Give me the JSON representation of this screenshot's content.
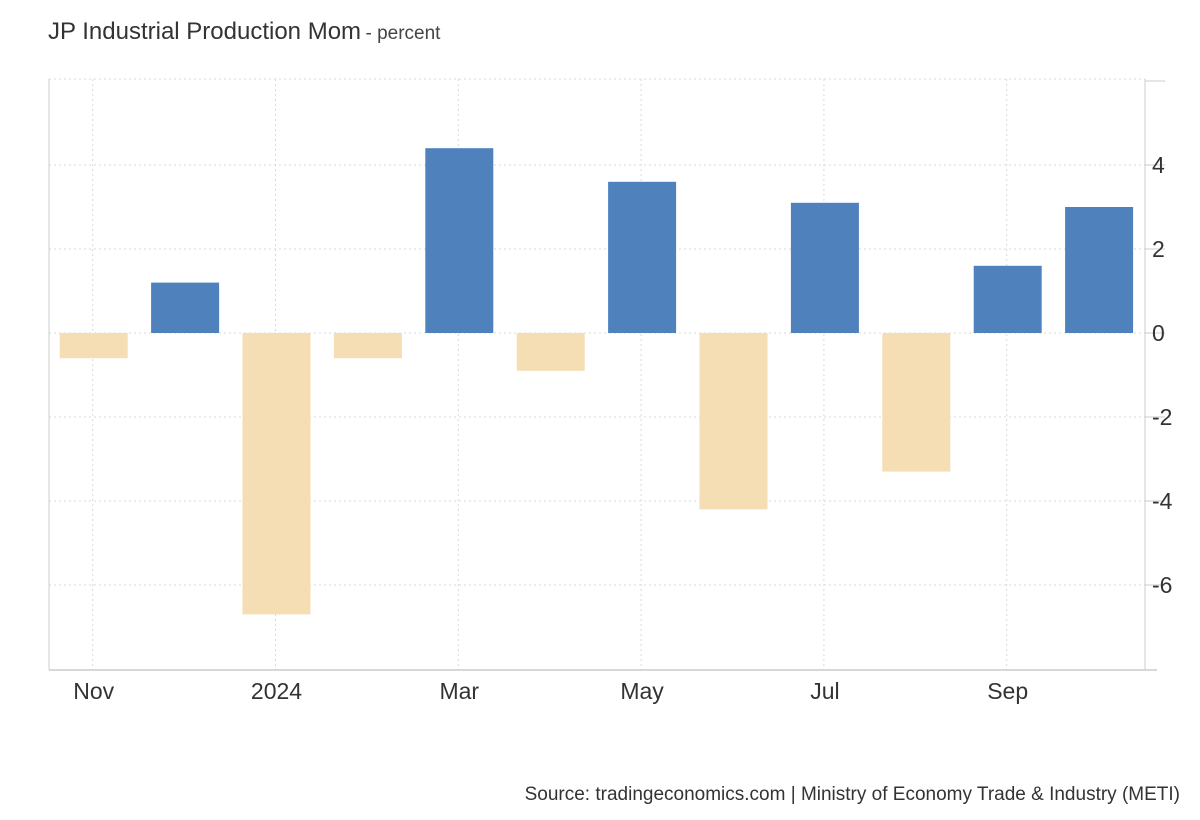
{
  "header": {
    "title": "JP Industrial Production Mom",
    "unit": "- percent"
  },
  "footer": {
    "source": "Source: tradingeconomics.com | Ministry of Economy Trade & Industry (METI)"
  },
  "colors": {
    "positive": "#4f81bd",
    "negative": "#f5deb3",
    "grid": "#d9d9d9",
    "axis": "#cccccc"
  },
  "chart_data": {
    "type": "bar",
    "categories": [
      "2023-11",
      "2023-12",
      "2024-01",
      "2024-02",
      "2024-03",
      "2024-04",
      "2024-05",
      "2024-06",
      "2024-07",
      "2024-08",
      "2024-09",
      "2024-10"
    ],
    "values": [
      -0.6,
      1.2,
      -6.7,
      -0.6,
      4.4,
      -0.9,
      3.6,
      -4.2,
      3.1,
      -3.3,
      1.6,
      3.0
    ],
    "x_tick_labels": [
      "Nov",
      "2024",
      "Mar",
      "May",
      "Jul",
      "Sep"
    ],
    "x_tick_categories": [
      "2023-11",
      "2024-01",
      "2024-03",
      "2024-05",
      "2024-07",
      "2024-09"
    ],
    "y_ticks": [
      4,
      2,
      0,
      -2,
      -4,
      -6
    ],
    "ylim": [
      -8,
      6
    ],
    "y_axis_side": "right",
    "grid": true,
    "legend": "none",
    "title": "JP Industrial Production Mom",
    "xlabel": "",
    "ylabel": ""
  }
}
